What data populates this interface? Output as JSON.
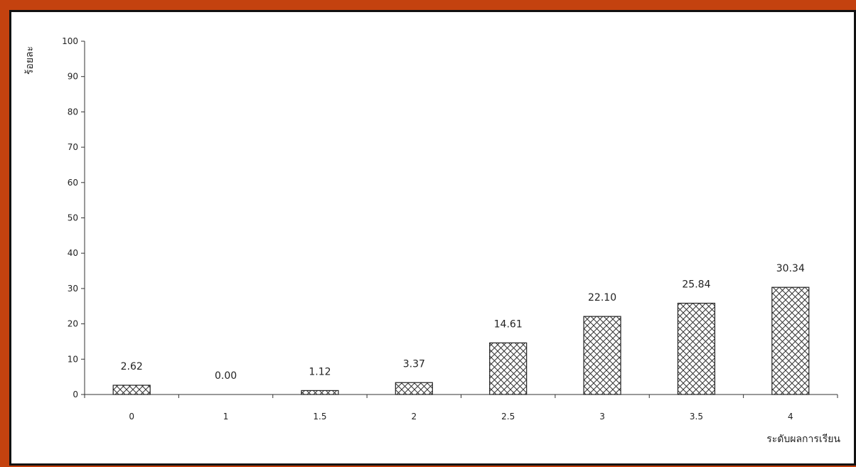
{
  "colors": {
    "background": "#c4420f",
    "panel": "#ffffff",
    "bar_stroke": "#222222",
    "axis": "#333333"
  },
  "chart_data": {
    "type": "bar",
    "title": "",
    "xlabel": "ระดับผลการเรียน",
    "ylabel": "ร้อยละ",
    "categories": [
      "0",
      "1",
      "1.5",
      "2",
      "2.5",
      "3",
      "3.5",
      "4"
    ],
    "values": [
      2.62,
      0.0,
      1.12,
      3.37,
      14.61,
      22.1,
      25.84,
      30.34
    ],
    "data_labels": [
      "2.62",
      "0.00",
      "1.12",
      "3.37",
      "14.61",
      "22.10",
      "25.84",
      "30.34"
    ],
    "ylim": [
      0,
      100
    ],
    "yticks": [
      0,
      10,
      20,
      30,
      40,
      50,
      60,
      70,
      80,
      90,
      100
    ],
    "bar_pattern": "crosshatch",
    "grid": false,
    "legend": "none"
  }
}
